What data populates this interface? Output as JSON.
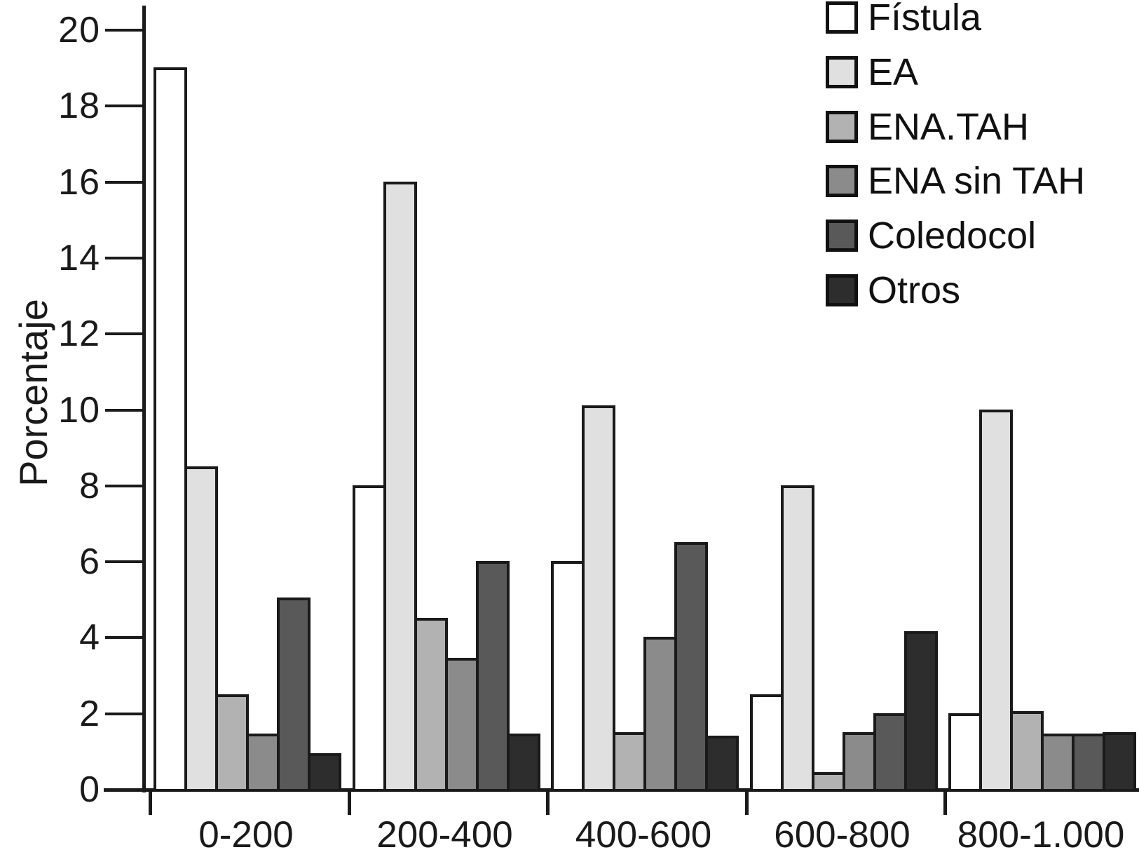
{
  "chart_data": {
    "type": "bar",
    "title": "",
    "xlabel": "",
    "ylabel": "Porcentaje",
    "ylim": [
      0,
      20
    ],
    "ytick_step": 2,
    "ytick_labels": [
      "0",
      "2",
      "4",
      "6",
      "8",
      "10",
      "12",
      "14",
      "16",
      "18",
      "20"
    ],
    "grid": false,
    "legend_position": "top-right",
    "categories": [
      "0-200",
      "200-400",
      "400-600",
      "600-800",
      "800-1.000"
    ],
    "series": [
      {
        "name": "Fístula",
        "color": "#ffffff",
        "values": [
          19,
          8,
          6,
          2.5,
          2
        ]
      },
      {
        "name": "EA",
        "color": "#e0e0e0",
        "values": [
          8.5,
          16,
          10.1,
          8,
          10
        ]
      },
      {
        "name": "ENA.TAH",
        "color": "#b2b2b2",
        "values": [
          2.5,
          4.5,
          1.5,
          0.45,
          2.05
        ]
      },
      {
        "name": "ENA sin TAH",
        "color": "#8b8b8b",
        "values": [
          1.45,
          3.45,
          4,
          1.5,
          1.45
        ]
      },
      {
        "name": "Coledocol",
        "color": "#595959",
        "values": [
          5.05,
          6,
          6.5,
          2,
          1.45
        ]
      },
      {
        "name": "Otros",
        "color": "#2d2d2d",
        "values": [
          0.95,
          1.45,
          1.4,
          4.15,
          1.5
        ]
      }
    ],
    "colors": {
      "ink": "#1a1a1a",
      "background": "#ffffff"
    }
  }
}
